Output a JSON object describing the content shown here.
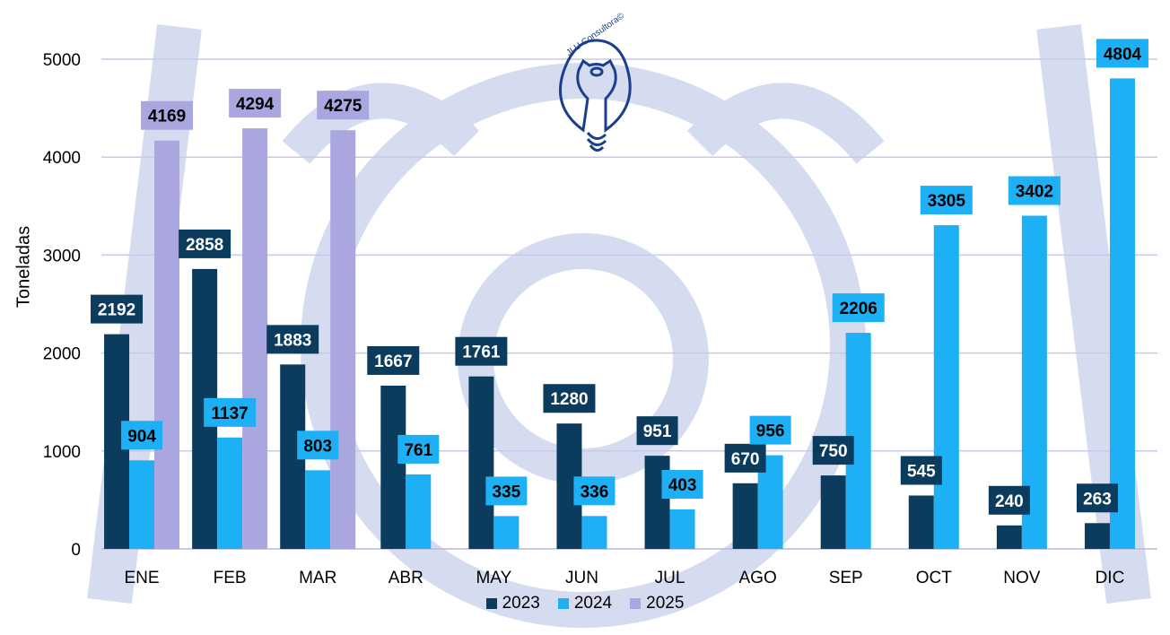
{
  "logo_text": "JLU Consultora©",
  "chart_data": {
    "type": "bar",
    "title": "",
    "xlabel": "",
    "ylabel": "Toneladas",
    "ylim": [
      0,
      5000
    ],
    "yticks": [
      0,
      1000,
      2000,
      3000,
      4000,
      5000
    ],
    "grid": true,
    "legend_position": "bottom",
    "categories": [
      "ENE",
      "FEB",
      "MAR",
      "ABR",
      "MAY",
      "JUN",
      "JUL",
      "AGO",
      "SEP",
      "OCT",
      "NOV",
      "DIC"
    ],
    "series": [
      {
        "name": "2023",
        "color": "#0b3c5d",
        "label_text_color": "#ffffff",
        "values": [
          2192,
          2858,
          1883,
          1667,
          1761,
          1280,
          951,
          670,
          750,
          545,
          240,
          263
        ]
      },
      {
        "name": "2024",
        "color": "#1eb0f5",
        "label_text_color": "#000000",
        "values": [
          904,
          1137,
          803,
          761,
          335,
          336,
          403,
          956,
          2206,
          3305,
          3402,
          4804
        ]
      },
      {
        "name": "2025",
        "color": "#aaa6e0",
        "label_text_color": "#000000",
        "values": [
          4169,
          4294,
          4275,
          null,
          null,
          null,
          null,
          null,
          null,
          null,
          null,
          null
        ]
      }
    ]
  }
}
